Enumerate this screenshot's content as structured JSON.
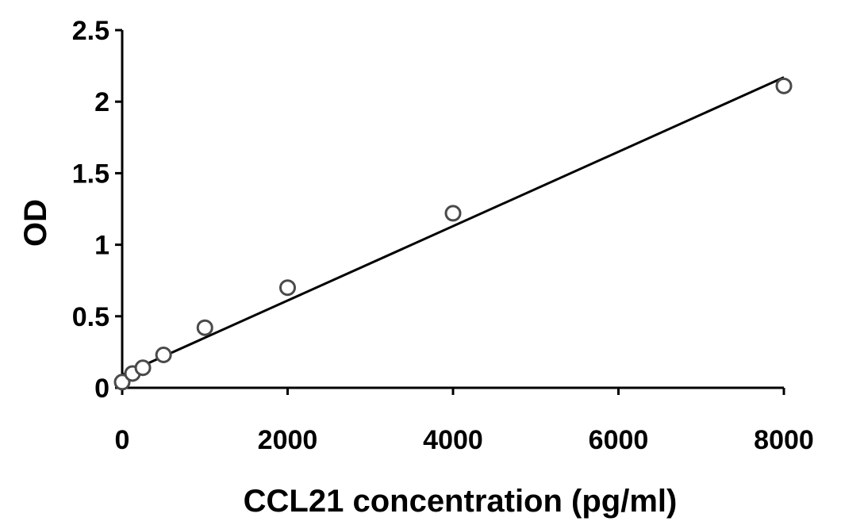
{
  "chart_data": {
    "type": "scatter",
    "xlabel": "CCL21 concentration (pg/ml)",
    "ylabel": "OD",
    "xlim": [
      0,
      8000
    ],
    "ylim": [
      0,
      2.5
    ],
    "x_ticks": [
      0,
      2000,
      4000,
      6000,
      8000
    ],
    "y_ticks": [
      0,
      0.5,
      1,
      1.5,
      2,
      2.5
    ],
    "x_tick_labels": [
      "0",
      "2000",
      "4000",
      "6000",
      "8000"
    ],
    "y_tick_labels": [
      "0",
      "0.5",
      "1",
      "1.5",
      "2",
      "2.5"
    ],
    "grid": false,
    "legend": "none",
    "series": [
      {
        "x": [
          0,
          125,
          250,
          500,
          1000,
          2000,
          4000,
          8000
        ],
        "y": [
          0.04,
          0.1,
          0.14,
          0.23,
          0.42,
          0.7,
          1.22,
          2.11
        ],
        "marker": "open-circle"
      }
    ],
    "trendline": {
      "type": "linear",
      "x": [
        0,
        8000
      ],
      "y": [
        0.09,
        2.17
      ]
    }
  }
}
